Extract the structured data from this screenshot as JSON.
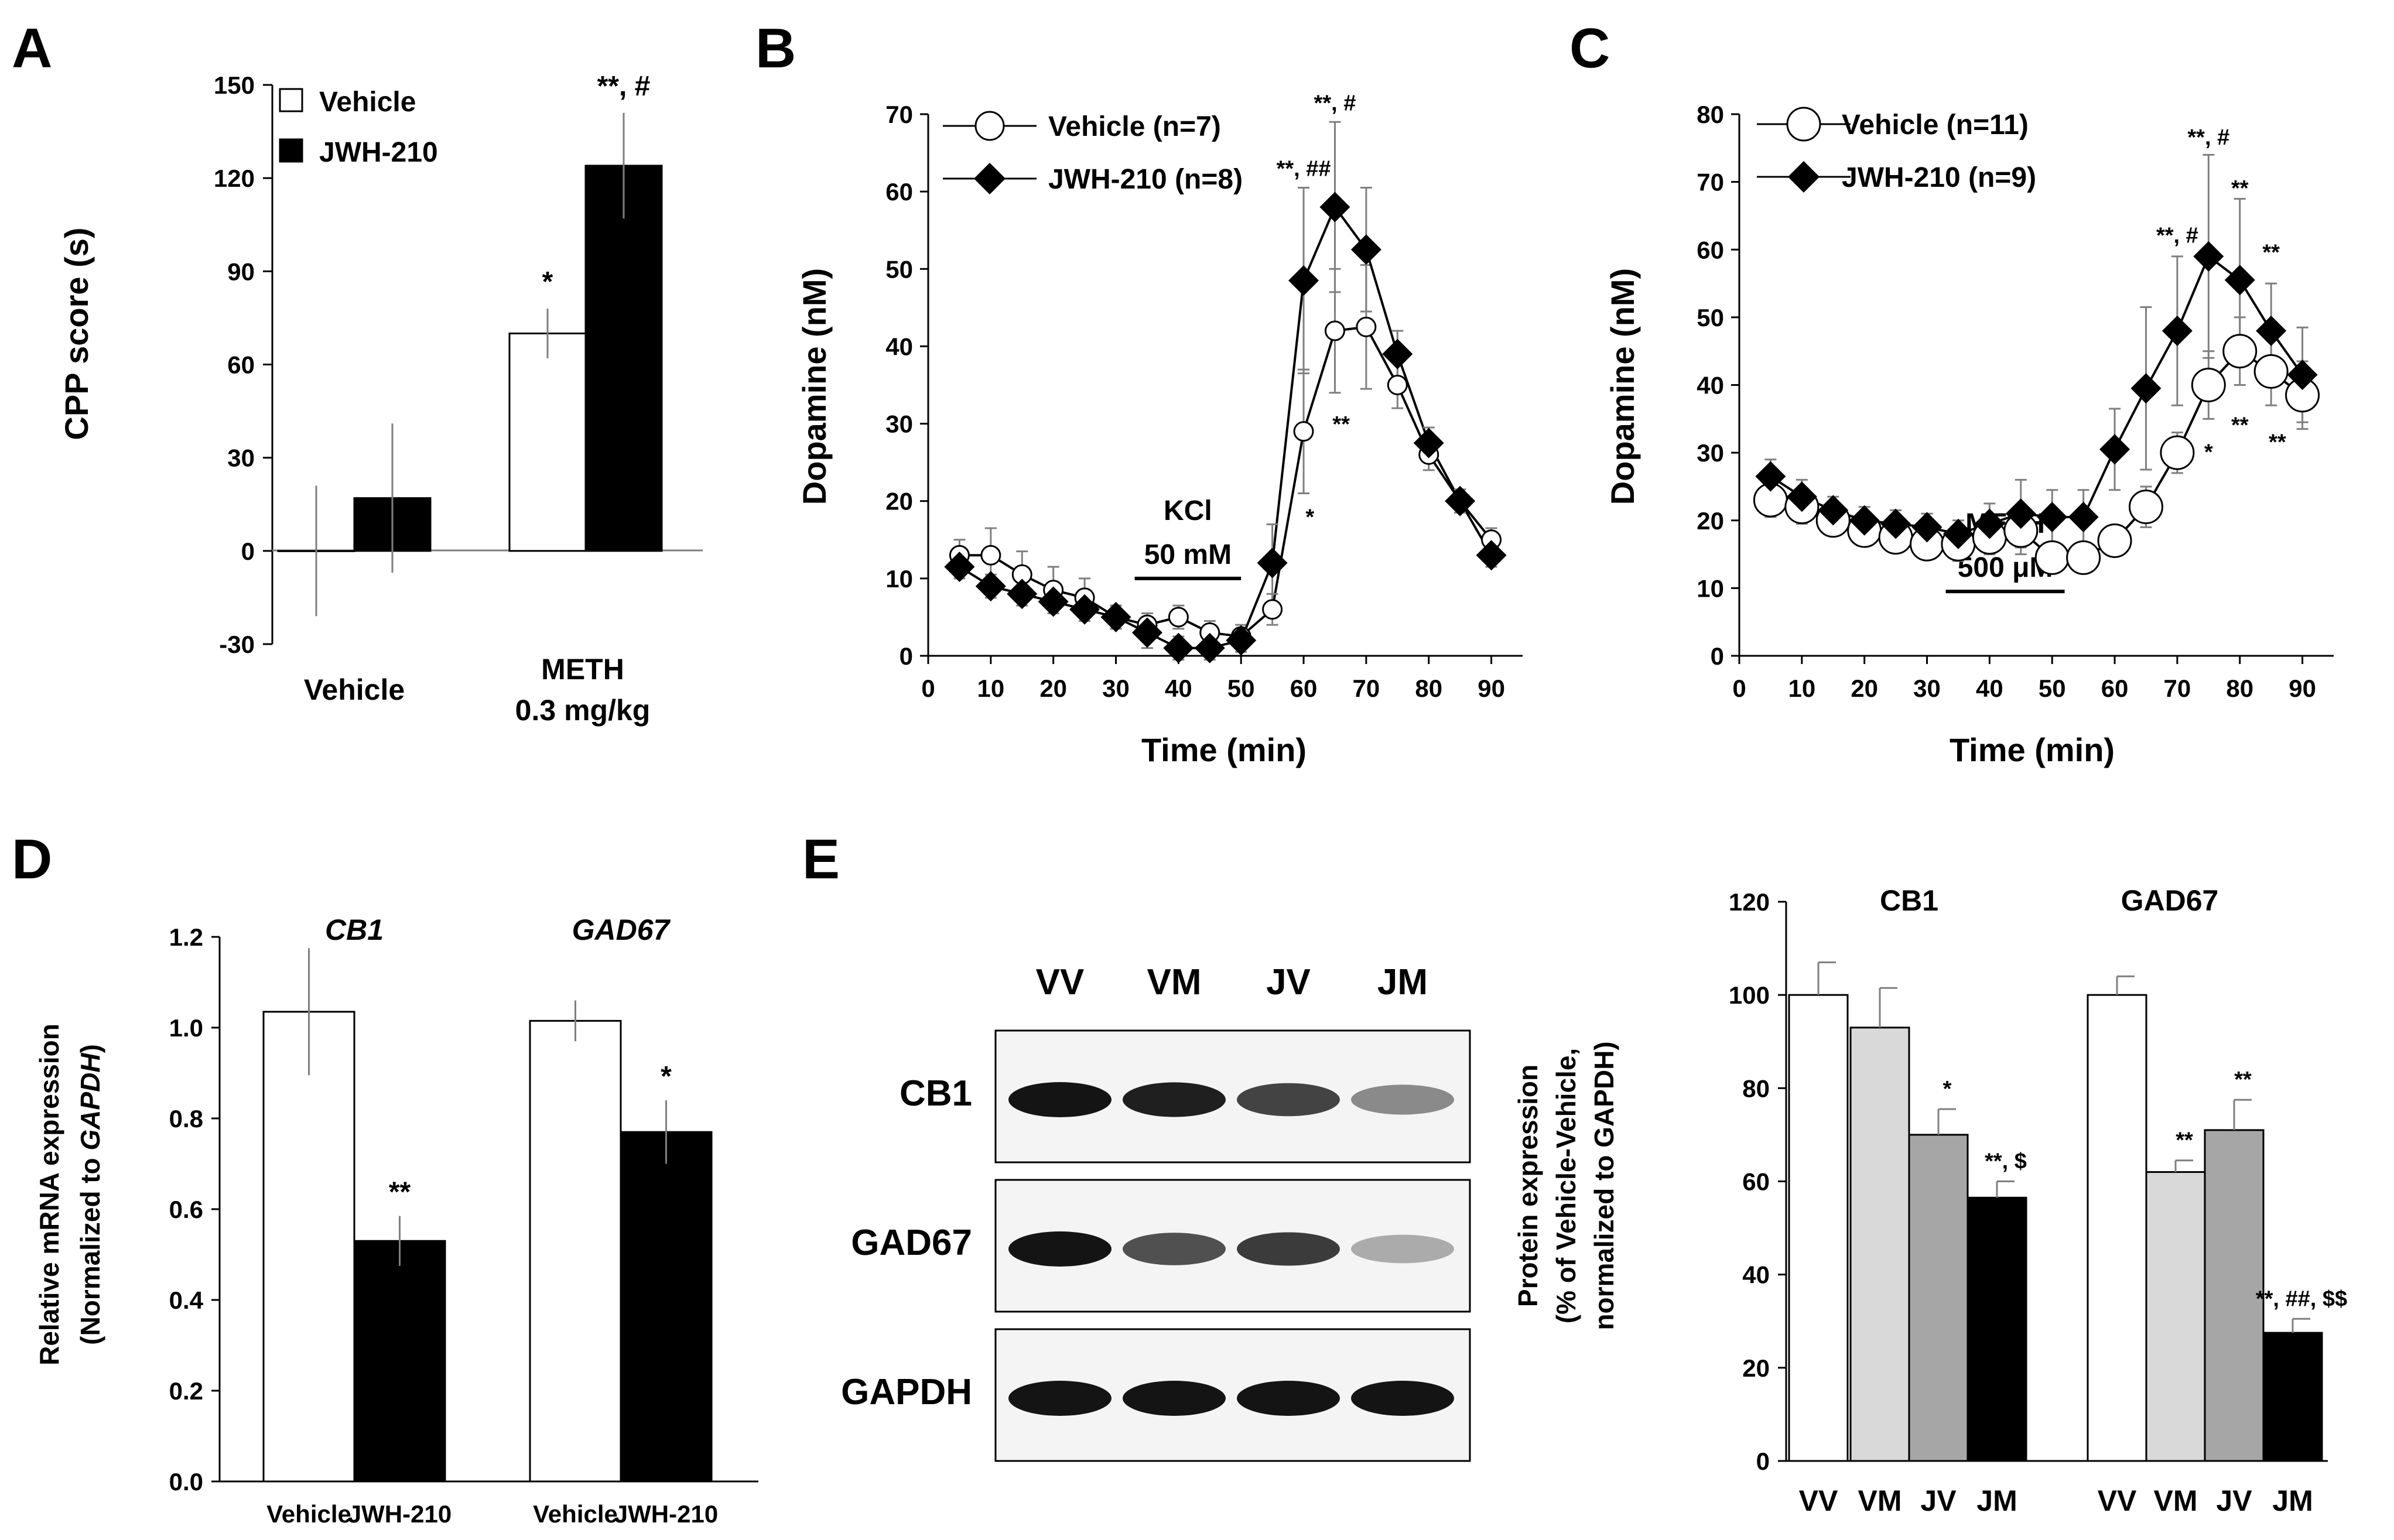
{
  "colors": {
    "vehicle_fill": "#ffffff",
    "jwh_fill": "#000000",
    "vm_fill": "#d9d9d9",
    "jv_fill": "#a6a6a6",
    "jm_fill": "#000000",
    "stroke": "#000000",
    "error_bar": "#7f7f7f"
  },
  "chart_data": [
    {
      "panel": "A",
      "type": "bar",
      "ylabel": "CPP score (s)",
      "ylim": [
        -30,
        150
      ],
      "yticks": [
        -30,
        0,
        30,
        60,
        90,
        120,
        150
      ],
      "legend": [
        "Vehicle",
        "JWH-210"
      ],
      "legend_position": "top-left",
      "groups": [
        {
          "label": "Vehicle",
          "label2": ""
        },
        {
          "label": "METH",
          "label2": "0.3 mg/kg"
        }
      ],
      "series": [
        {
          "name": "Vehicle",
          "values": [
            0,
            70
          ],
          "errors": [
            21,
            8
          ],
          "sig": [
            "",
            "*"
          ]
        },
        {
          "name": "JWH-210",
          "values": [
            17,
            124
          ],
          "errors": [
            24,
            17
          ],
          "sig": [
            "",
            "**, #"
          ]
        }
      ]
    },
    {
      "panel": "B",
      "type": "line",
      "xlabel": "Time (min)",
      "ylabel": "Dopamine (nM)",
      "xlim": [
        0,
        95
      ],
      "ylim": [
        0,
        70
      ],
      "xticks": [
        0,
        10,
        20,
        30,
        40,
        50,
        60,
        70,
        80,
        90
      ],
      "yticks": [
        0,
        10,
        20,
        30,
        40,
        50,
        60,
        70
      ],
      "legend_position": "top-left",
      "stimulus": {
        "line1": "KCl",
        "line2": "50 mM",
        "x_start": 33,
        "x_end": 50
      },
      "x": [
        5,
        10,
        15,
        20,
        25,
        30,
        35,
        40,
        45,
        50,
        55,
        60,
        65,
        70,
        75,
        80,
        85,
        90
      ],
      "series": [
        {
          "name": "Vehicle (n=7)",
          "marker": "circle",
          "values": [
            13,
            13,
            10.5,
            8.5,
            7.5,
            5,
            4,
            5,
            3,
            2.5,
            6,
            29,
            42,
            42.5,
            35,
            26,
            20,
            15
          ],
          "errors": [
            2,
            3.5,
            3,
            3,
            2.5,
            1.5,
            1.5,
            1.5,
            1.5,
            1.5,
            2,
            8,
            8,
            8,
            3,
            2,
            1.5,
            1.5
          ]
        },
        {
          "name": "JWH-210 (n=8)",
          "marker": "diamond",
          "values": [
            11.5,
            9,
            8,
            7,
            6,
            5,
            3,
            1,
            1,
            2,
            12,
            48.5,
            58,
            52.5,
            39,
            27.5,
            20,
            13
          ],
          "errors": [
            1.5,
            1.5,
            1.5,
            1.5,
            1.5,
            1.5,
            2,
            1.5,
            1.5,
            1.5,
            5,
            12,
            11,
            8,
            3,
            2,
            1.5,
            1.5
          ]
        }
      ],
      "annotations": [
        {
          "text": "**, #",
          "x": 65,
          "y": 70.5
        },
        {
          "text": "**, ##",
          "x": 60,
          "y": 62
        },
        {
          "text": "**",
          "x": 66,
          "y": 29
        },
        {
          "text": "*",
          "x": 61,
          "y": 17
        }
      ]
    },
    {
      "panel": "C",
      "type": "line",
      "xlabel": "Time (min)",
      "ylabel": "Dopamine (nM)",
      "xlim": [
        0,
        95
      ],
      "ylim": [
        0,
        80
      ],
      "xticks": [
        0,
        10,
        20,
        30,
        40,
        50,
        60,
        70,
        80,
        90
      ],
      "yticks": [
        0,
        10,
        20,
        30,
        40,
        50,
        60,
        70,
        80
      ],
      "legend_position": "top-left",
      "stimulus": {
        "line1": "METH",
        "line2": "500 μM",
        "x_start": 33,
        "x_end": 52
      },
      "x": [
        5,
        10,
        15,
        20,
        25,
        30,
        35,
        40,
        45,
        50,
        55,
        60,
        65,
        70,
        75,
        80,
        85,
        90
      ],
      "series": [
        {
          "name": "Vehicle (n=11)",
          "marker": "circle",
          "values": [
            23,
            22,
            20,
            18.5,
            17.5,
            16.5,
            16.5,
            17.5,
            18.5,
            14.5,
            14.5,
            17,
            22,
            30,
            40,
            45,
            42,
            38.5
          ],
          "errors": [
            2.5,
            2.5,
            2,
            2,
            2,
            2,
            2.5,
            2.5,
            3.5,
            2,
            2,
            2,
            3,
            3,
            5,
            5,
            5,
            5
          ]
        },
        {
          "name": "JWH-210 (n=9)",
          "marker": "diamond",
          "values": [
            26.5,
            23.5,
            21.5,
            20,
            19.5,
            19,
            18,
            19.5,
            21,
            20.5,
            20.5,
            30.5,
            39.5,
            48,
            59,
            55.5,
            48,
            41.5
          ],
          "errors": [
            2.5,
            2.5,
            2,
            2,
            2,
            2,
            2,
            3,
            5,
            4,
            4,
            6,
            12,
            11,
            15,
            12,
            7,
            7
          ]
        }
      ],
      "annotations": [
        {
          "text": "**, #",
          "x": 75,
          "y": 75.5
        },
        {
          "text": "**",
          "x": 80,
          "y": 68
        },
        {
          "text": "**, #",
          "x": 70,
          "y": 61
        },
        {
          "text": "**",
          "x": 85,
          "y": 58.5
        },
        {
          "text": "**",
          "x": 80,
          "y": 33
        },
        {
          "text": "**",
          "x": 86,
          "y": 30.5
        },
        {
          "text": "*",
          "x": 75,
          "y": 29
        }
      ]
    },
    {
      "panel": "D",
      "type": "bar",
      "ylabel_line1": "Relative mRNA expression",
      "ylabel_line2_prefix": "(Normalized to ",
      "ylabel_line2_gene": "GAPDH",
      "ylabel_line2_suffix": ")",
      "ylim": [
        0,
        1.2
      ],
      "yticks": [
        "0.0",
        "0.2",
        "0.4",
        "0.6",
        "0.8",
        "1.0",
        "1.2"
      ],
      "genes": [
        "CB1",
        "GAD67"
      ],
      "categories": [
        "Vehicle",
        "JWH-210",
        "Vehicle",
        "JWH-210"
      ],
      "values": [
        1.035,
        0.53,
        1.015,
        0.77
      ],
      "errors": [
        0.14,
        0.055,
        0.045,
        0.07
      ],
      "sig": [
        "",
        "**",
        "",
        "*"
      ]
    },
    {
      "panel": "E",
      "type": "bar",
      "ylabel_line1": "Protein expression",
      "ylabel_line2": "(% of Vehicle-Vehicle,",
      "ylabel_line3": "normalized to GAPDH)",
      "ylim": [
        0,
        120
      ],
      "yticks": [
        0,
        20,
        40,
        60,
        80,
        100,
        120
      ],
      "genes": [
        "CB1",
        "GAD67"
      ],
      "categories": [
        "VV",
        "VM",
        "JV",
        "JM",
        "VV",
        "VM",
        "JV",
        "JM"
      ],
      "values": [
        100,
        93,
        70,
        56.5,
        100,
        62,
        71,
        27.5
      ],
      "errors": [
        7,
        8.5,
        5.5,
        3.5,
        4,
        2.5,
        6.5,
        3
      ],
      "sig": [
        "",
        "",
        "*",
        "**, $",
        "",
        "**",
        "**",
        "**, ##, $$"
      ]
    }
  ],
  "panel_letters": [
    "A",
    "B",
    "C",
    "D",
    "E"
  ],
  "blot": {
    "lanes": [
      "VV",
      "VM",
      "JV",
      "JM"
    ],
    "rows": [
      {
        "label": "CB1",
        "intensity": [
          1.0,
          0.95,
          0.78,
          0.45
        ]
      },
      {
        "label": "GAD67",
        "intensity": [
          1.0,
          0.72,
          0.82,
          0.3
        ]
      },
      {
        "label": "GAPDH",
        "intensity": [
          1.0,
          1.0,
          1.0,
          1.0
        ]
      }
    ]
  }
}
